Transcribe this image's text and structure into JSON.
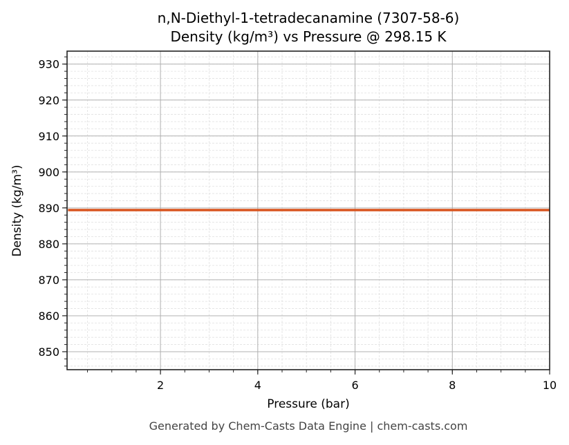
{
  "header": {
    "title_line1": "n,N-Diethyl-1-tetradecanamine (7307-58-6)",
    "title_line2": "Density (kg/m³) vs Pressure @ 298.15 K"
  },
  "axes": {
    "xlabel": "Pressure (bar)",
    "ylabel": "Density (kg/m³)"
  },
  "footer": {
    "text": "Generated by Chem-Casts Data Engine | chem-casts.com"
  },
  "colors": {
    "line": "#d9541e",
    "major_grid": "#b0b0b0",
    "minor_grid": "#e0e0e0",
    "axes": "#222222"
  },
  "chart_data": {
    "type": "line",
    "title": "n,N-Diethyl-1-tetradecanamine (7307-58-6)\nDensity (kg/m³) vs Pressure @ 298.15 K",
    "xlabel": "Pressure (bar)",
    "ylabel": "Density (kg/m³)",
    "xlim": [
      0.08,
      10
    ],
    "ylim": [
      845,
      933.6
    ],
    "xticks": [
      2,
      4,
      6,
      8,
      10
    ],
    "yticks": [
      850,
      860,
      870,
      880,
      890,
      900,
      910,
      920,
      930
    ],
    "grid": true,
    "minor_grid": true,
    "legend": null,
    "series": [
      {
        "name": "Density",
        "x": [
          0.1,
          1,
          2,
          3,
          4,
          5,
          6,
          7,
          8,
          9,
          10
        ],
        "values": [
          889.4,
          889.4,
          889.4,
          889.4,
          889.4,
          889.4,
          889.4,
          889.4,
          889.4,
          889.4,
          889.4
        ]
      }
    ]
  }
}
